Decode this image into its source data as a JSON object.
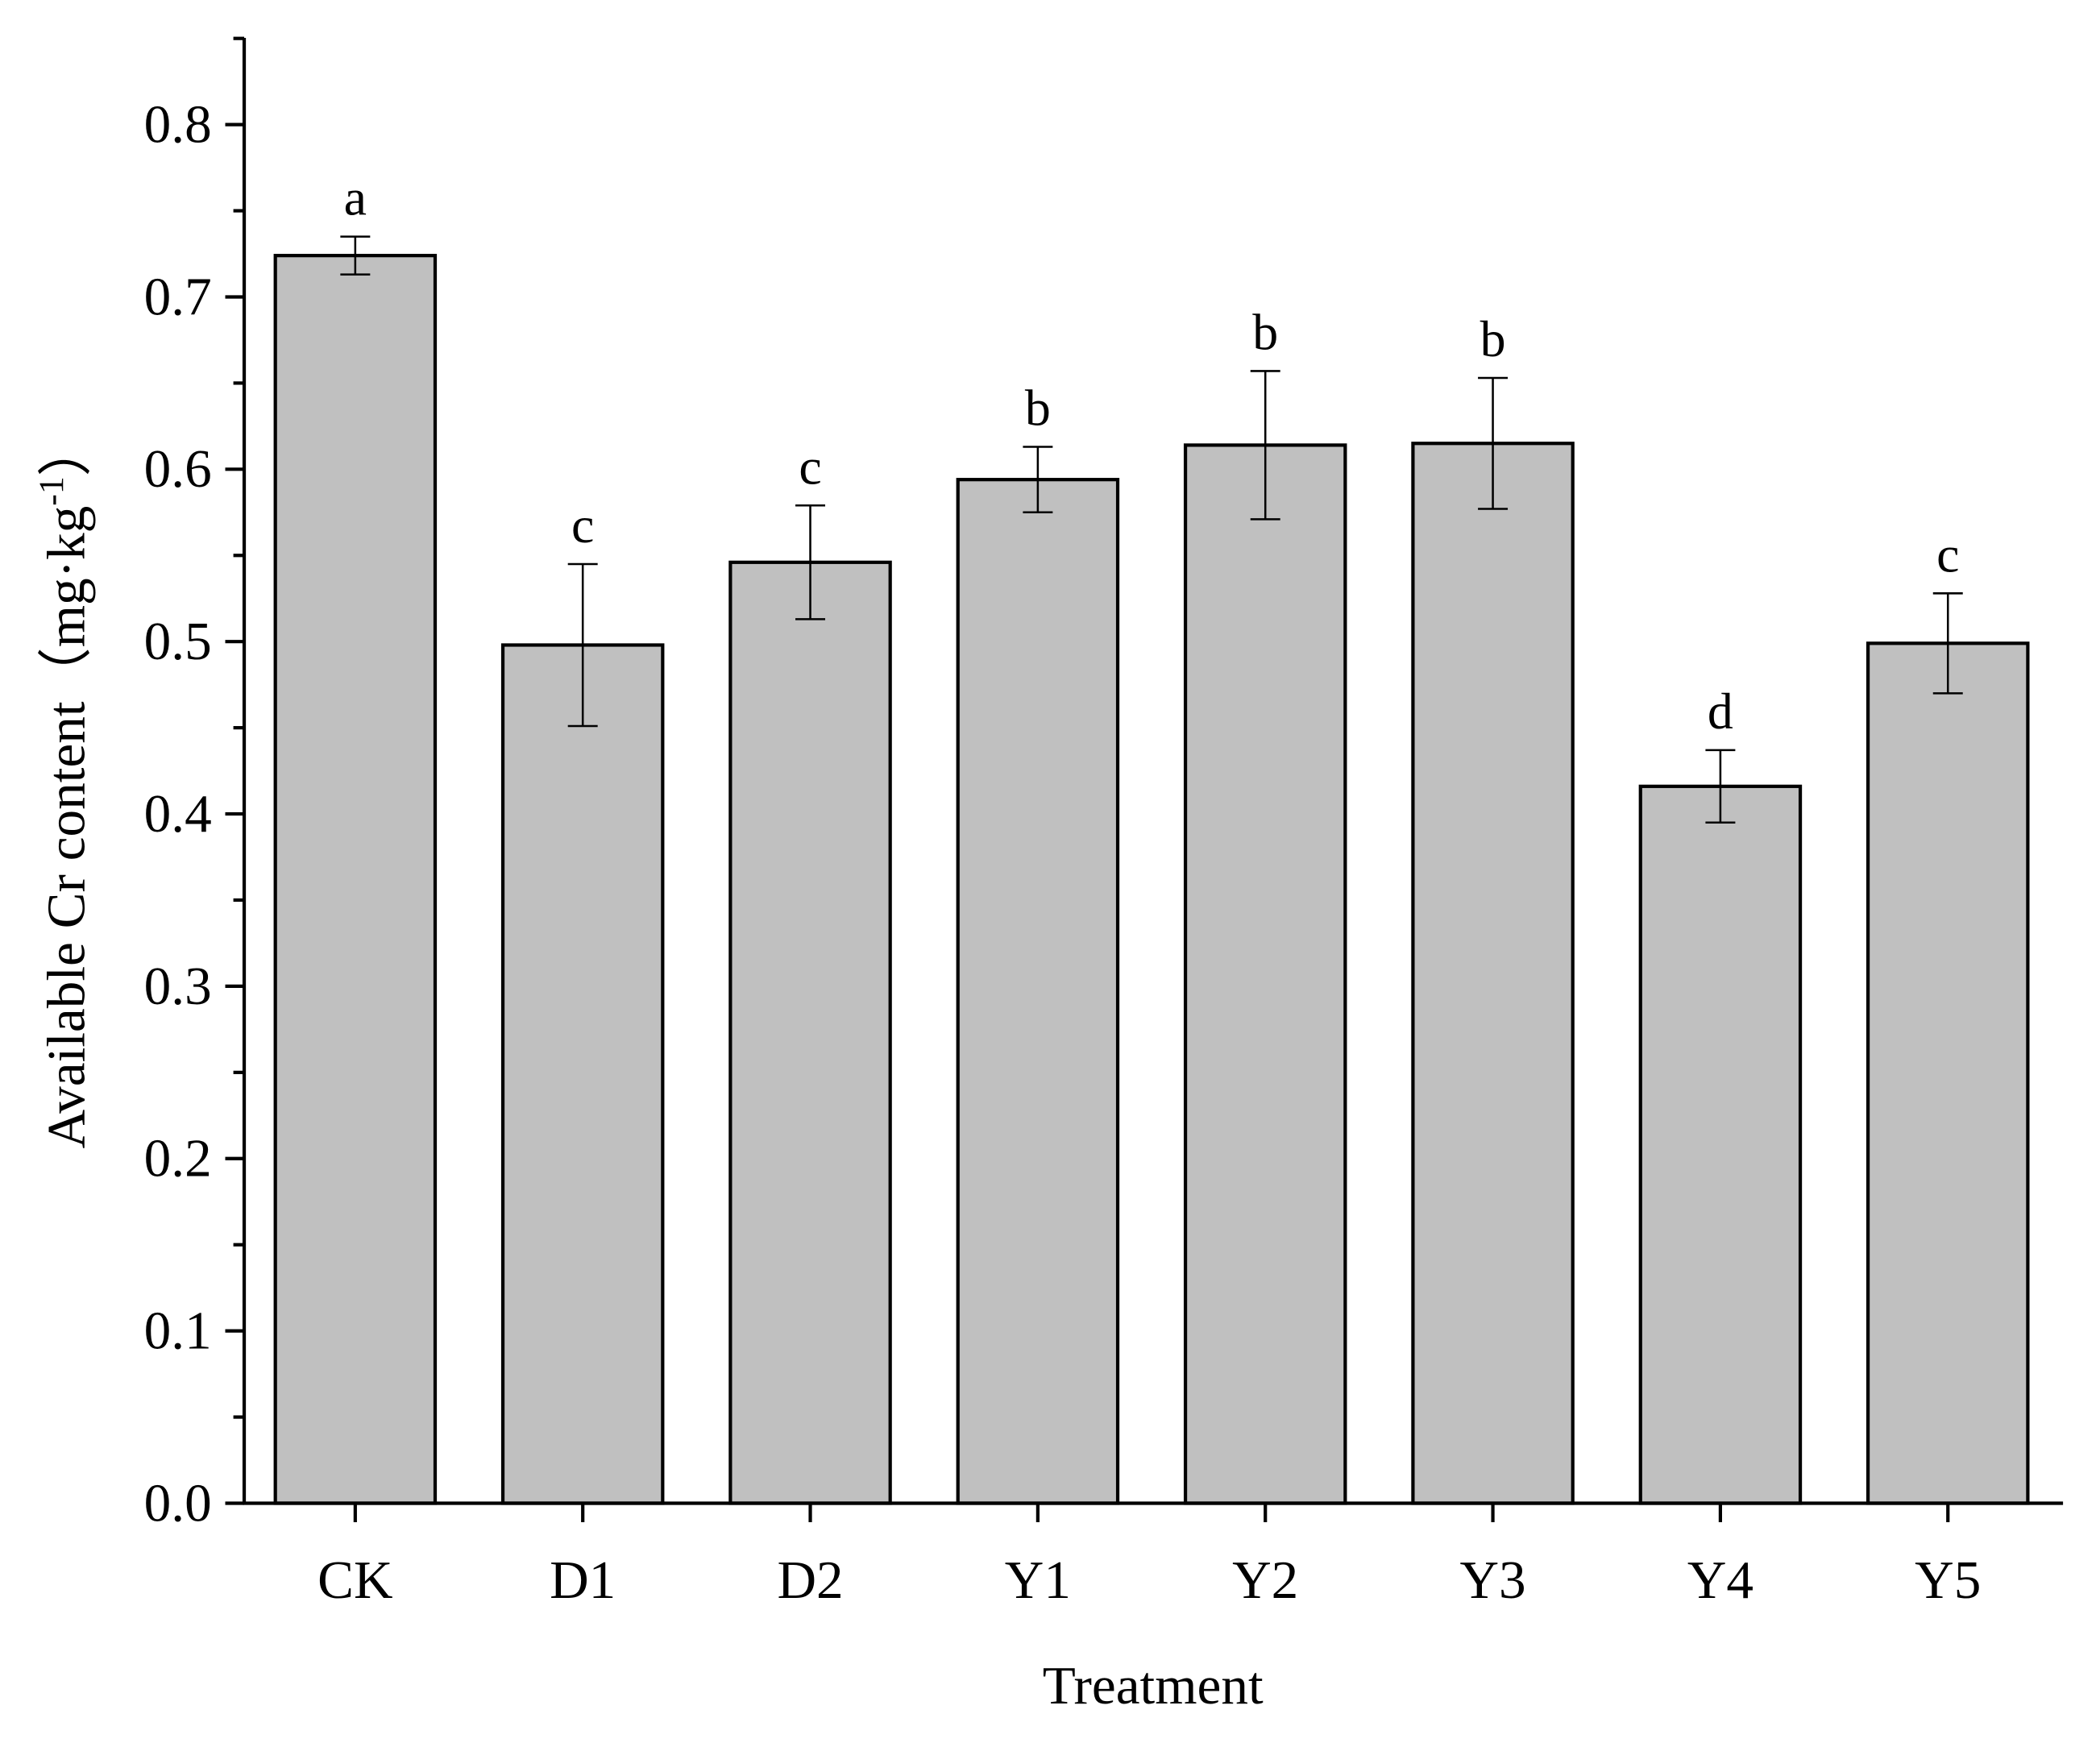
{
  "chart_data": {
    "type": "bar",
    "title": "",
    "xlabel": "Treatment",
    "ylabel": "Available Cr content（mg·kg",
    "ylabel_sup": "-1",
    "ylabel_end": "）",
    "categories": [
      "CK",
      "D1",
      "D2",
      "Y1",
      "Y2",
      "Y3",
      "Y4",
      "Y5"
    ],
    "values": [
      0.724,
      0.498,
      0.546,
      0.594,
      0.614,
      0.615,
      0.416,
      0.499
    ],
    "errors": [
      0.011,
      0.047,
      0.033,
      0.019,
      0.043,
      0.038,
      0.021,
      0.029
    ],
    "significance": [
      "a",
      "c",
      "c",
      "b",
      "b",
      "b",
      "d",
      "c"
    ],
    "ylim": [
      0,
      0.85
    ],
    "yticks": [
      "0.0",
      "0.1",
      "0.2",
      "0.3",
      "0.4",
      "0.5",
      "0.6",
      "0.7",
      "0.8"
    ],
    "grid": false,
    "legend": "none",
    "bar_color": "#c0c0c0",
    "edge_color": "#000000"
  }
}
